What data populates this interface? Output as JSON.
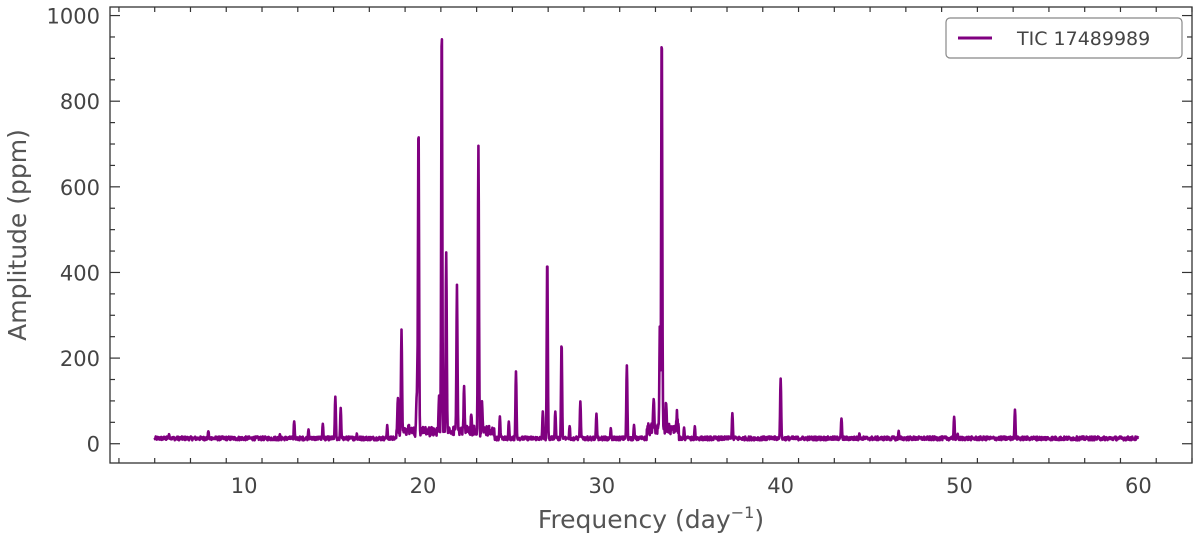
{
  "chart_data": {
    "type": "line",
    "xlabel": "Frequency (day",
    "xlabel_superscript": "−1",
    "xlabel_suffix": ")",
    "ylabel": "Amplitude (ppm)",
    "xlim": [
      2.5,
      63
    ],
    "ylim": [
      -45,
      1020
    ],
    "xticks": [
      10,
      20,
      30,
      40,
      50,
      60
    ],
    "xtick_labels": [
      "10",
      "20",
      "30",
      "40",
      "50",
      "60"
    ],
    "yticks": [
      0,
      200,
      400,
      600,
      800,
      1000
    ],
    "ytick_labels": [
      "0",
      "200",
      "400",
      "600",
      "800",
      "1000"
    ],
    "grid": false,
    "legend_position": "top-right",
    "series": [
      {
        "name": "TIC 17489989",
        "color": "#800080",
        "x_range": [
          5,
          60
        ],
        "baseline": 8,
        "peaks": [
          [
            5.8,
            22
          ],
          [
            8.0,
            28
          ],
          [
            12.0,
            22
          ],
          [
            12.8,
            52
          ],
          [
            13.6,
            30
          ],
          [
            14.4,
            45
          ],
          [
            15.1,
            108
          ],
          [
            15.4,
            82
          ],
          [
            16.3,
            22
          ],
          [
            18.0,
            40
          ],
          [
            18.6,
            95
          ],
          [
            18.8,
            248
          ],
          [
            19.2,
            30
          ],
          [
            19.65,
            100
          ],
          [
            19.7,
            205
          ],
          [
            19.75,
            740
          ],
          [
            20.9,
            92
          ],
          [
            21.05,
            972
          ],
          [
            21.3,
            430
          ],
          [
            21.9,
            345
          ],
          [
            22.3,
            115
          ],
          [
            22.7,
            52
          ],
          [
            23.1,
            685
          ],
          [
            23.3,
            75
          ],
          [
            24.3,
            60
          ],
          [
            24.8,
            50
          ],
          [
            25.2,
            168
          ],
          [
            26.7,
            72
          ],
          [
            26.95,
            435
          ],
          [
            27.4,
            75
          ],
          [
            27.75,
            236
          ],
          [
            28.2,
            40
          ],
          [
            28.8,
            95
          ],
          [
            29.7,
            68
          ],
          [
            30.5,
            33
          ],
          [
            31.4,
            182
          ],
          [
            31.8,
            40
          ],
          [
            32.9,
            82
          ],
          [
            33.25,
            258
          ],
          [
            33.35,
            945
          ],
          [
            33.6,
            80
          ],
          [
            34.2,
            55
          ],
          [
            34.6,
            35
          ],
          [
            35.2,
            38
          ],
          [
            37.3,
            68
          ],
          [
            40.0,
            152
          ],
          [
            43.4,
            58
          ],
          [
            44.4,
            22
          ],
          [
            46.6,
            28
          ],
          [
            49.7,
            62
          ],
          [
            49.9,
            22
          ],
          [
            53.1,
            78
          ]
        ]
      }
    ]
  }
}
